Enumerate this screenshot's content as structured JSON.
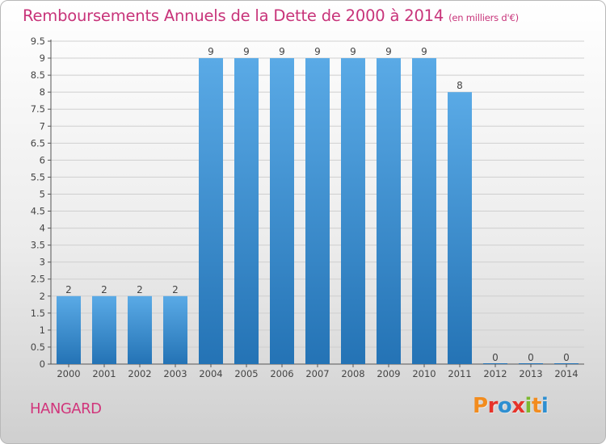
{
  "header": {
    "title": "Remboursements Annuels de la Dette de 2000 à 2014",
    "unit": "(en milliers d'€)"
  },
  "footer": {
    "commune": "HANGARD",
    "logo_text": "Proxiti",
    "logo_colors": [
      "#f28c1e",
      "#e6332a",
      "#2e8fd1",
      "#e6332a",
      "#7cb82f",
      "#f28c1e",
      "#2e8fd1"
    ]
  },
  "colors": {
    "title": "#c8347a",
    "bar_top": "#5aaae6",
    "bar_bottom": "#2473b5",
    "grid": "#cfcfcf",
    "text": "#444444"
  },
  "chart_data": {
    "type": "bar",
    "title": "Remboursements Annuels de la Dette de 2000 à 2014",
    "subtitle": "(en milliers d'€)",
    "categories": [
      "2000",
      "2001",
      "2002",
      "2003",
      "2004",
      "2005",
      "2006",
      "2007",
      "2008",
      "2009",
      "2010",
      "2011",
      "2012",
      "2013",
      "2014"
    ],
    "values": [
      2,
      2,
      2,
      2,
      9,
      9,
      9,
      9,
      9,
      9,
      9,
      8,
      0,
      0,
      0
    ],
    "data_labels": [
      "2",
      "2",
      "2",
      "2",
      "9",
      "9",
      "9",
      "9",
      "9",
      "9",
      "9",
      "8",
      "0",
      "0",
      "0"
    ],
    "yticks": [
      "0",
      "0.5",
      "1",
      "1.5",
      "2",
      "2.5",
      "3",
      "3.5",
      "4",
      "4.5",
      "5",
      "5.5",
      "6",
      "6.5",
      "7",
      "7.5",
      "8",
      "8.5",
      "9",
      "9.5"
    ],
    "ylim": [
      0,
      9.5
    ],
    "grid": true,
    "xlabel": "",
    "ylabel": ""
  }
}
